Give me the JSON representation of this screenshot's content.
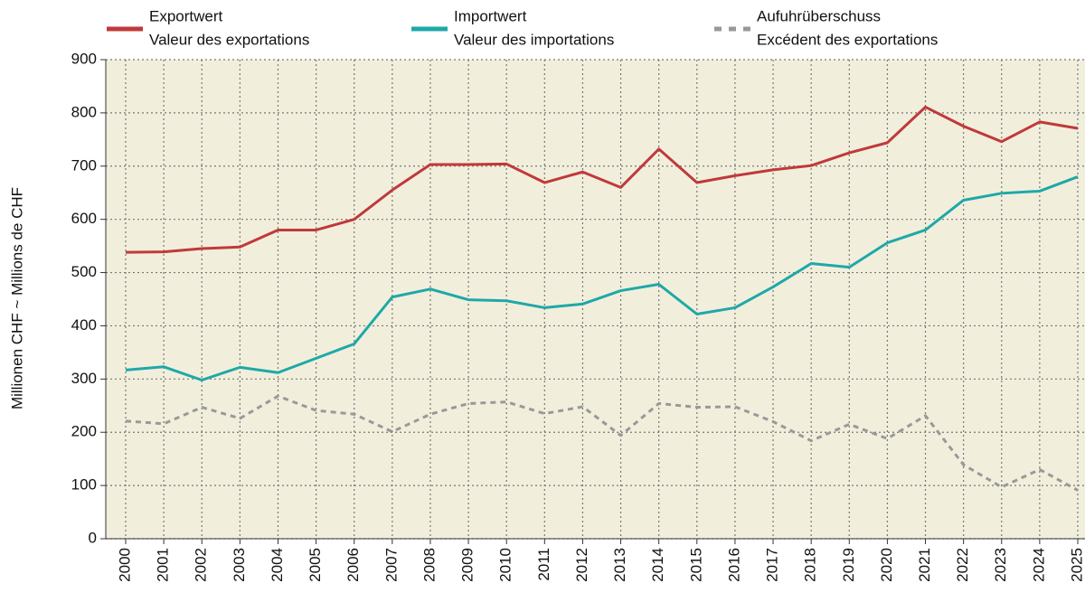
{
  "chart_data": {
    "type": "line",
    "y_label": "Millionen CHF  ~  Millions de CHF",
    "categories": [
      "2000",
      "2001",
      "2002",
      "2003",
      "2004",
      "2005",
      "2006",
      "2007",
      "2008",
      "2009",
      "2010",
      "2011",
      "2012",
      "2013",
      "2014",
      "2015",
      "2016",
      "2017",
      "2018",
      "2019",
      "2020",
      "2021",
      "2022",
      "2023",
      "2024",
      "2025"
    ],
    "series": [
      {
        "name": "Exportwert",
        "name_fr": "Valeur des exportations",
        "color": "#c0393b",
        "dashed": false,
        "values": [
          538,
          539,
          545,
          548,
          580,
          580,
          600,
          655,
          703,
          703,
          704,
          669,
          689,
          660,
          732,
          669,
          682,
          693,
          701,
          725,
          744,
          811,
          775,
          746,
          783,
          771
        ]
      },
      {
        "name": "Importwert",
        "name_fr": "Valeur des importations",
        "color": "#1fa8a8",
        "dashed": false,
        "values": [
          317,
          323,
          298,
          322,
          312,
          339,
          366,
          454,
          469,
          449,
          447,
          434,
          441,
          466,
          478,
          422,
          434,
          473,
          517,
          510,
          556,
          580,
          636,
          649,
          653,
          680
        ]
      },
      {
        "name": "Aufuhrüberschuss",
        "name_fr": "Excédent des exportations",
        "color": "#999999",
        "dashed": true,
        "values": [
          221,
          216,
          247,
          226,
          268,
          241,
          234,
          201,
          234,
          254,
          257,
          235,
          248,
          194,
          254,
          247,
          248,
          220,
          184,
          215,
          188,
          231,
          139,
          97,
          130,
          91
        ]
      }
    ],
    "ylim": [
      0,
      900
    ],
    "yticks": [
      0,
      100,
      200,
      300,
      400,
      500,
      600,
      700,
      800,
      900
    ],
    "grid": true,
    "background": "#f1efdc"
  }
}
